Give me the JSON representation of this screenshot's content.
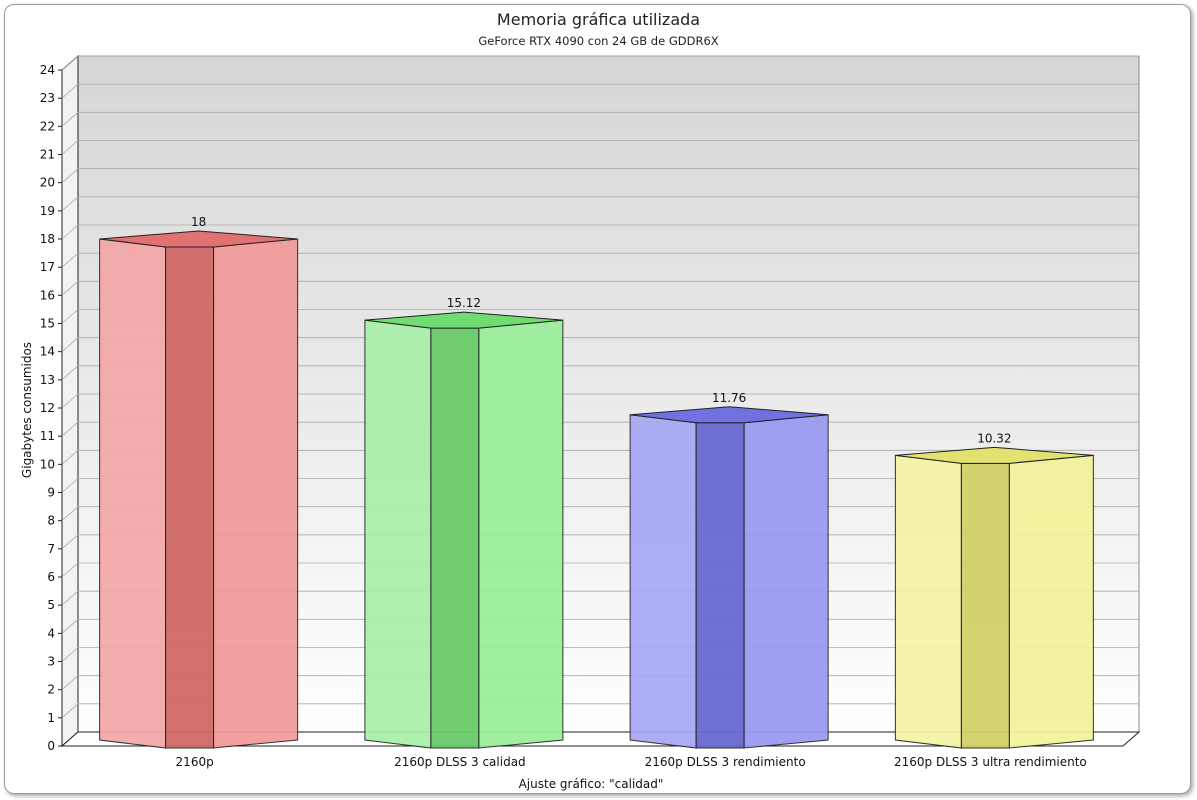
{
  "chart_data": {
    "type": "bar",
    "title": "Memoria gráfica utilizada",
    "subtitle": "GeForce RTX 4090 con 24 GB de GDDR6X",
    "xlabel": "Ajuste gráfico: \"calidad\"",
    "ylabel": "Gigabytes consumidos",
    "ylim": [
      0,
      24
    ],
    "yticks": [
      "0",
      "1",
      "2",
      "3",
      "4",
      "5",
      "6",
      "7",
      "8",
      "9",
      "10",
      "11",
      "12",
      "13",
      "14",
      "15",
      "16",
      "17",
      "18",
      "19",
      "20",
      "21",
      "22",
      "23",
      "24"
    ],
    "categories": [
      "2160p",
      "2160p DLSS 3 calidad",
      "2160p DLSS 3 rendimiento",
      "2160p DLSS 3 ultra rendimiento"
    ],
    "values": [
      18,
      15.12,
      11.76,
      10.32
    ],
    "data_labels": [
      "18",
      "15.12",
      "11.76",
      "10.32"
    ],
    "colors": [
      "#ee7777",
      "#77e877",
      "#7777ee",
      "#eeee77"
    ],
    "grid": true,
    "style": "3d"
  }
}
